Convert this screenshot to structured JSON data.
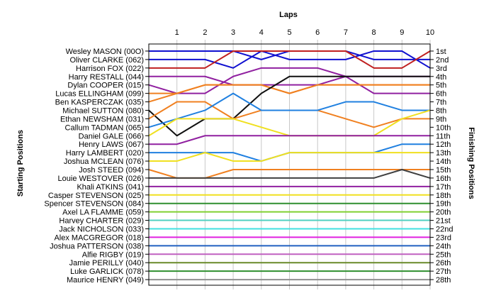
{
  "chart_data": {
    "type": "line",
    "title": "Laps",
    "ylabel_left": "Starting Positions",
    "ylabel_right": "Finishing Positions",
    "x": [
      0,
      1,
      2,
      3,
      4,
      5,
      6,
      7,
      8,
      9,
      10
    ],
    "x_tick_labels": [
      "1",
      "2",
      "3",
      "4",
      "5",
      "6",
      "7",
      "8",
      "9",
      "10"
    ],
    "y_reversed": true,
    "ylim": [
      1,
      28
    ],
    "grid": "vertical",
    "starting_labels": [
      "Wesley MASON (00O)",
      "Oliver CLARKE (062)",
      "Harrison FOX (022)",
      "Harry RESTALL (044)",
      "Dylan COOPER (015)",
      "Lucas ELLINGHAM (099)",
      "Ben KASPERCZAK (035)",
      "Michael SUTTON (080)",
      "Ethan NEWSHAM (031)",
      "Callum TADMAN (065)",
      "Daniel GALE (066)",
      "Henry LAWS (067)",
      "Harry LAMBERT (020)",
      "Joshua MCLEAN (076)",
      "Josh STEED (094)",
      "Louie WESTOVER (026)",
      "Khali ATKINS (041)",
      "Casper STEVENSON (025)",
      "Spencer STEVENSON (084)",
      "Axel LA FLAMME (059)",
      "Harvey CHARTER (029)",
      "Jack NICHOLSON (033)",
      "Alex MACGREGOR (018)",
      "Joshua PATTERSON (038)",
      "Alfie RIGBY (019)",
      "Jamie PERILLY (040)",
      "Luke GARLICK (078)",
      "Maurice HENRY (049)"
    ],
    "finishing_labels": [
      "1st",
      "2nd",
      "3rd",
      "4th",
      "5th",
      "6th",
      "7th",
      "8th",
      "9th",
      "10th",
      "11th",
      "12th",
      "13th",
      "14th",
      "15th",
      "16th",
      "17th",
      "18th",
      "19th",
      "20th",
      "21st",
      "22nd",
      "23rd",
      "24th",
      "25th",
      "26th",
      "27th",
      "28th"
    ],
    "series": [
      {
        "values": [
          1,
          1,
          1,
          1,
          2,
          1,
          1,
          1,
          2,
          2,
          2
        ],
        "color": "#1010d0"
      },
      {
        "values": [
          2,
          2,
          2,
          3,
          1,
          2,
          2,
          2,
          1,
          1,
          3
        ],
        "color": "#1010d0"
      },
      {
        "values": [
          3,
          3,
          3,
          1,
          1,
          1,
          1,
          1,
          3,
          3,
          1
        ],
        "color": "#c02020"
      },
      {
        "values": [
          4,
          4,
          4,
          5,
          5,
          5,
          5,
          4,
          4,
          4,
          4
        ],
        "color": "#9020a0"
      },
      {
        "values": [
          5,
          6,
          6,
          4,
          3,
          3,
          3,
          4,
          6,
          6,
          6
        ],
        "color": "#9020a0"
      },
      {
        "values": [
          6,
          6,
          5,
          5,
          5,
          6,
          5,
          5,
          5,
          5,
          5
        ],
        "color": "#f08020"
      },
      {
        "values": [
          7,
          6,
          5,
          5,
          5,
          6,
          5,
          5,
          5,
          5,
          5
        ],
        "color": "#f08020"
      },
      {
        "values": [
          8,
          11,
          9,
          9,
          6,
          4,
          4,
          4,
          4,
          4,
          4
        ],
        "color": "#101010"
      },
      {
        "values": [
          9,
          7,
          7,
          9,
          8,
          8,
          8,
          9,
          10,
          9,
          9
        ],
        "color": "#f08020"
      },
      {
        "values": [
          10,
          9,
          8,
          6,
          8,
          8,
          8,
          7,
          7,
          8,
          8
        ],
        "color": "#2080e0"
      },
      {
        "values": [
          11,
          9,
          9,
          9,
          10,
          11,
          11,
          11,
          11,
          9,
          8
        ],
        "color": "#f0e020"
      },
      {
        "values": [
          12,
          12,
          11,
          11,
          11,
          11,
          11,
          11,
          11,
          11,
          11
        ],
        "color": "#9020a0"
      },
      {
        "values": [
          13,
          13,
          13,
          13,
          14,
          13,
          13,
          13,
          13,
          12,
          12
        ],
        "color": "#2080e0"
      },
      {
        "values": [
          14,
          14,
          13,
          14,
          14,
          13,
          13,
          13,
          13,
          13,
          13
        ],
        "color": "#f0e020"
      },
      {
        "values": [
          15,
          16,
          16,
          15,
          15,
          15,
          15,
          15,
          15,
          15,
          15
        ],
        "color": "#f08020"
      },
      {
        "values": [
          16,
          16,
          16,
          16,
          16,
          16,
          16,
          16,
          16,
          15,
          16
        ],
        "color": "#404040"
      },
      {
        "values": [
          17,
          17,
          17,
          17,
          17,
          17,
          17,
          17,
          17,
          17,
          17
        ],
        "color": "#9020a0"
      },
      {
        "values": [
          18,
          18,
          18,
          18,
          18,
          18,
          18,
          18,
          18,
          18,
          18
        ],
        "color": "#f0e020"
      },
      {
        "values": [
          19,
          19,
          19,
          19,
          19,
          19,
          19,
          19,
          19,
          19,
          19
        ],
        "color": "#2f8f2f"
      },
      {
        "values": [
          20,
          20,
          20,
          20,
          20,
          20,
          20,
          20,
          20,
          20,
          20
        ],
        "color": "#80d030"
      },
      {
        "values": [
          21,
          21,
          21,
          21,
          21,
          21,
          21,
          21,
          21,
          21,
          21
        ],
        "color": "#50d0c0"
      },
      {
        "values": [
          22,
          22,
          22,
          22,
          22,
          22,
          22,
          22,
          22,
          22,
          22
        ],
        "color": "#40e0e0"
      },
      {
        "values": [
          23,
          23,
          23,
          23,
          23,
          23,
          23,
          23,
          23,
          23,
          23
        ],
        "color": "#e020e0"
      },
      {
        "values": [
          24,
          24,
          24,
          24,
          24,
          24,
          24,
          24,
          24,
          24,
          24
        ],
        "color": "#2060c0"
      },
      {
        "values": [
          25,
          25,
          25,
          25,
          25,
          25,
          25,
          25,
          25,
          25,
          25
        ],
        "color": "#c060c0"
      },
      {
        "values": [
          26,
          26,
          26,
          26,
          26,
          26,
          26,
          26,
          26,
          26,
          26
        ],
        "color": "#6a8a2a"
      },
      {
        "values": [
          27,
          27,
          27,
          27,
          27,
          27,
          27,
          27,
          27,
          27,
          27
        ],
        "color": "#2f8f2f"
      },
      {
        "values": [
          28,
          28,
          28,
          28,
          28,
          28,
          28,
          28,
          28,
          28,
          28
        ],
        "color": "#909090"
      }
    ]
  }
}
